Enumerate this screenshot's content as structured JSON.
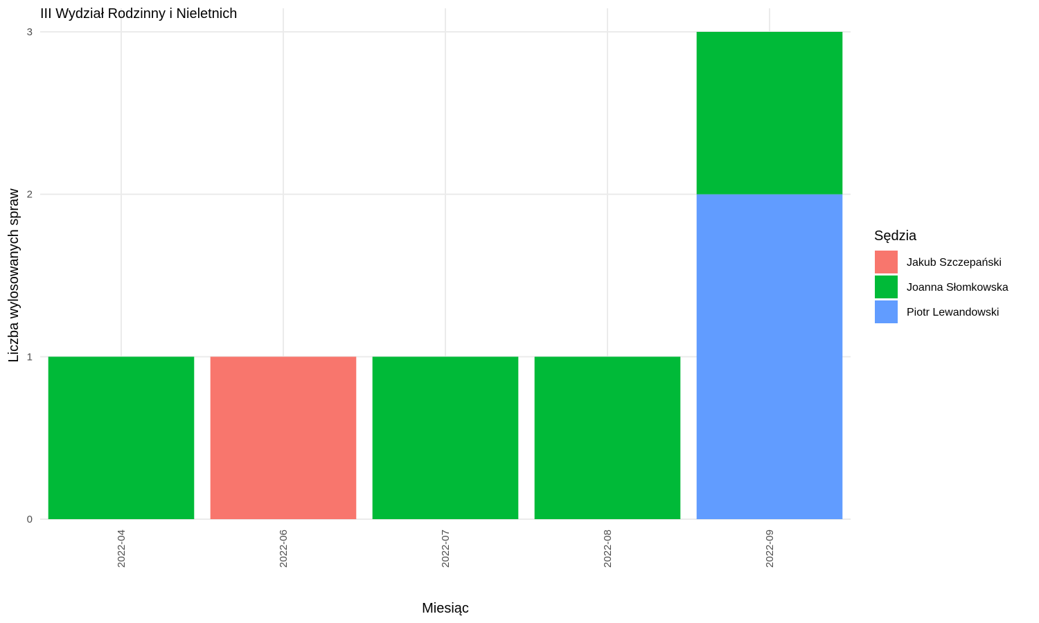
{
  "chart_data": {
    "type": "bar",
    "stacked": true,
    "title": "III Wydział Rodzinny i Nieletnich",
    "xlabel": "Miesiąc",
    "ylabel": "Liczba wylosowanych spraw",
    "ylim": [
      0,
      3
    ],
    "yticks": [
      0,
      1,
      2,
      3
    ],
    "grid": true,
    "legend": {
      "title": "Sędzia",
      "placement": "right"
    },
    "categories": [
      "2022-04",
      "2022-06",
      "2022-07",
      "2022-08",
      "2022-09"
    ],
    "series": [
      {
        "name": "Jakub Szczepański",
        "color": "#F8766D",
        "values": [
          0,
          1,
          0,
          0,
          0
        ]
      },
      {
        "name": "Joanna Słomkowska",
        "color": "#00BA38",
        "values": [
          1,
          0,
          1,
          1,
          1
        ]
      },
      {
        "name": "Piotr Lewandowski",
        "color": "#619CFF",
        "values": [
          0,
          0,
          0,
          0,
          2
        ]
      }
    ],
    "stack_order_bottom_to_top": [
      "Piotr Lewandowski",
      "Joanna Słomkowska",
      "Jakub Szczepański"
    ]
  }
}
